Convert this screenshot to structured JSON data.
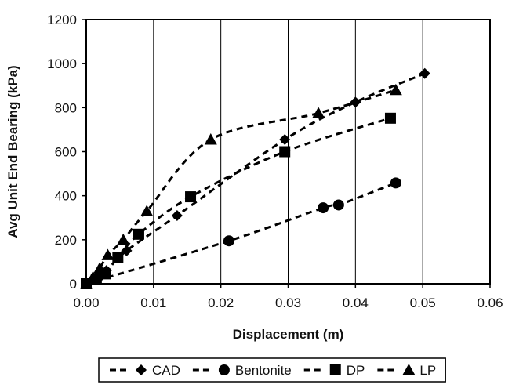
{
  "chart_data": {
    "type": "scatter",
    "xlabel": "Displacement (m)",
    "ylabel": "Avg Unit End Bearing (kPa)",
    "xlim": [
      0,
      0.06
    ],
    "ylim": [
      0,
      1200
    ],
    "xticks": [
      0,
      0.01,
      0.02,
      0.03,
      0.04,
      0.05,
      0.06
    ],
    "xtick_labels": [
      "0.00",
      "0.01",
      "0.02",
      "0.03",
      "0.04",
      "0.05",
      "0.06"
    ],
    "yticks": [
      0,
      200,
      400,
      600,
      800,
      1000,
      1200
    ],
    "ytick_labels": [
      "0",
      "200",
      "400",
      "600",
      "800",
      "1000",
      "1200"
    ],
    "grid": "vertical",
    "legend_position": "bottom",
    "series": [
      {
        "name": "CAD",
        "marker": "diamond",
        "line_style": "dashed",
        "x": [
          0,
          0.001,
          0.002,
          0.003,
          0.006,
          0.0135,
          0.0295,
          0.04,
          0.0503
        ],
        "y": [
          0,
          20,
          40,
          60,
          150,
          310,
          655,
          825,
          955
        ]
      },
      {
        "name": "Bentonite",
        "marker": "circle",
        "line_style": "dashed",
        "x": [
          0,
          0.0212,
          0.0352,
          0.0375,
          0.046
        ],
        "y": [
          0,
          195,
          345,
          358,
          458
        ]
      },
      {
        "name": "DP",
        "marker": "square",
        "line_style": "dashed",
        "x": [
          0,
          0.0015,
          0.0028,
          0.0047,
          0.0078,
          0.0155,
          0.0295,
          0.0452
        ],
        "y": [
          0,
          20,
          45,
          120,
          225,
          395,
          600,
          752
        ]
      },
      {
        "name": "LP",
        "marker": "triangle",
        "line_style": "dashed",
        "x": [
          0,
          0.001,
          0.002,
          0.0032,
          0.0055,
          0.009,
          0.0185,
          0.0345,
          0.046
        ],
        "y": [
          0,
          30,
          70,
          130,
          200,
          330,
          655,
          775,
          880
        ]
      }
    ]
  }
}
